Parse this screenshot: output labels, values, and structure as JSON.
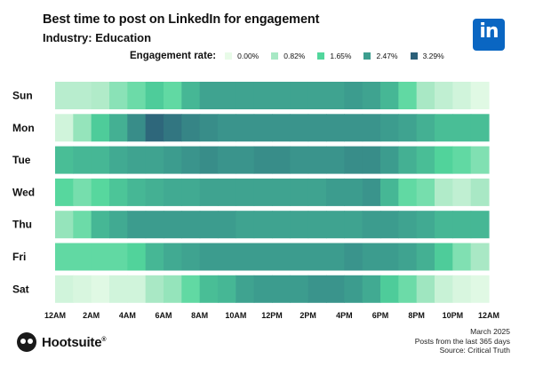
{
  "header": {
    "title": "Best time to post on LinkedIn for engagement",
    "subtitle": "Industry: Education"
  },
  "logo": {
    "text": "in",
    "color": "#0a66c2"
  },
  "legend": {
    "label": "Engagement rate:",
    "items": [
      {
        "text": "0.00%",
        "color": "#e8fbe8"
      },
      {
        "text": "0.82%",
        "color": "#a7e8c4"
      },
      {
        "text": "1.65%",
        "color": "#52d69c"
      },
      {
        "text": "2.47%",
        "color": "#3d9e8f"
      },
      {
        "text": "3.29%",
        "color": "#2c6079"
      }
    ]
  },
  "chart_data": {
    "type": "heatmap",
    "title": "Best time to post on LinkedIn for engagement",
    "subtitle": "Industry: Education",
    "value_unit": "engagement rate (%)",
    "color_scale": [
      0.0,
      0.82,
      1.65,
      2.47,
      3.29
    ],
    "rows": [
      "Sun",
      "Mon",
      "Tue",
      "Wed",
      "Thu",
      "Fri",
      "Sat"
    ],
    "x_tick_labels": [
      "12AM",
      "2AM",
      "4AM",
      "6AM",
      "8AM",
      "10AM",
      "12PM",
      "2PM",
      "4PM",
      "6PM",
      "8PM",
      "10PM",
      "12AM"
    ],
    "hours": 24,
    "values": [
      [
        0.6,
        0.6,
        0.7,
        1.1,
        1.4,
        1.8,
        1.5,
        2.1,
        2.4,
        2.4,
        2.4,
        2.4,
        2.4,
        2.4,
        2.4,
        2.4,
        2.5,
        2.4,
        2.1,
        1.5,
        0.8,
        0.5,
        0.3,
        0.1
      ],
      [
        0.3,
        1.0,
        1.8,
        2.2,
        2.7,
        3.2,
        3.0,
        2.8,
        2.7,
        2.6,
        2.6,
        2.6,
        2.6,
        2.6,
        2.6,
        2.6,
        2.6,
        2.6,
        2.5,
        2.4,
        2.2,
        2.0,
        2.0,
        2.0
      ],
      [
        2.0,
        2.1,
        2.1,
        2.3,
        2.4,
        2.4,
        2.5,
        2.6,
        2.7,
        2.6,
        2.6,
        2.7,
        2.7,
        2.6,
        2.6,
        2.6,
        2.7,
        2.7,
        2.5,
        2.2,
        2.0,
        1.7,
        1.5,
        1.2
      ],
      [
        1.6,
        1.3,
        1.6,
        1.9,
        2.1,
        2.2,
        2.3,
        2.3,
        2.4,
        2.4,
        2.4,
        2.4,
        2.4,
        2.4,
        2.4,
        2.5,
        2.5,
        2.6,
        2.1,
        1.5,
        1.3,
        0.7,
        0.5,
        0.8
      ],
      [
        1.0,
        1.4,
        2.1,
        2.3,
        2.5,
        2.5,
        2.5,
        2.5,
        2.5,
        2.5,
        2.4,
        2.4,
        2.4,
        2.4,
        2.4,
        2.4,
        2.4,
        2.5,
        2.5,
        2.4,
        2.3,
        2.1,
        2.1,
        2.1
      ],
      [
        1.5,
        1.5,
        1.5,
        1.5,
        1.7,
        2.1,
        2.3,
        2.4,
        2.5,
        2.5,
        2.5,
        2.5,
        2.5,
        2.5,
        2.5,
        2.5,
        2.6,
        2.5,
        2.5,
        2.4,
        2.2,
        1.8,
        1.2,
        0.8
      ],
      [
        0.3,
        0.2,
        0.1,
        0.3,
        0.3,
        0.8,
        1.0,
        1.5,
        2.0,
        2.1,
        2.4,
        2.5,
        2.5,
        2.5,
        2.6,
        2.6,
        2.5,
        2.3,
        1.8,
        1.4,
        0.9,
        0.4,
        0.2,
        0.1
      ]
    ]
  },
  "footer": {
    "brand": "Hootsuite",
    "brand_mark": "®",
    "notes": [
      "March 2025",
      "Posts from the last 365 days",
      "Source: Critical Truth"
    ]
  }
}
